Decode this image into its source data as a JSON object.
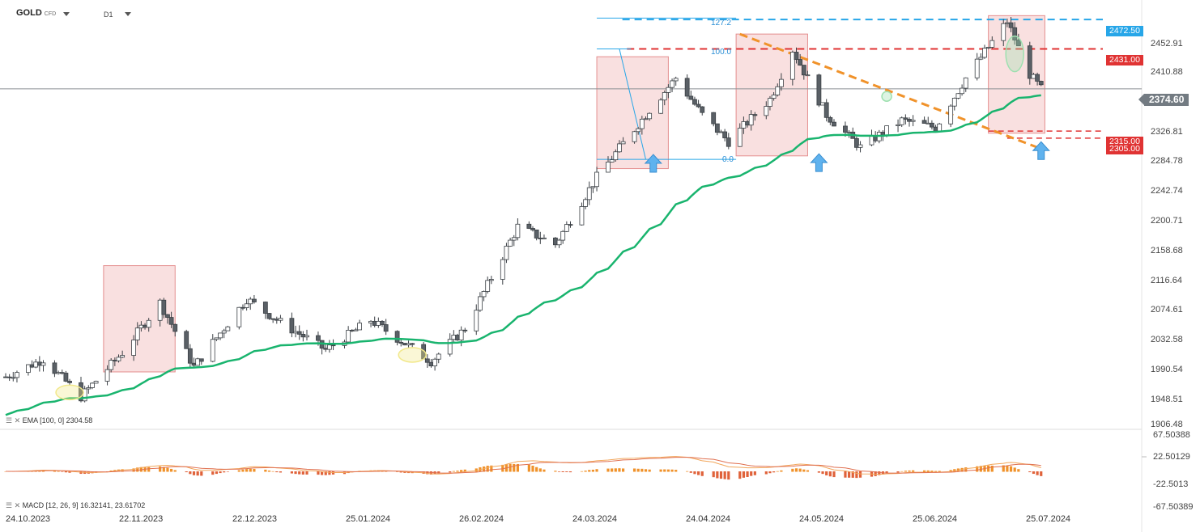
{
  "header": {
    "symbol": "GOLD",
    "symbol_suffix": "CFD",
    "timeframe": "D1"
  },
  "price_axis": {
    "ticks": [
      "2452.91",
      "2410.88",
      "2326.81",
      "2284.78",
      "2242.74",
      "2200.71",
      "2158.68",
      "2116.64",
      "2074.61",
      "2032.58",
      "1990.54",
      "1948.51",
      "1906.48"
    ],
    "last_price": "2374.60"
  },
  "levels": {
    "resistance_high": "2472.50",
    "resistance": "2431.00",
    "support_a": "2315.00",
    "support_b": "2305.00"
  },
  "fibonacci": {
    "labels": [
      "127.2",
      "100.0",
      "0.0"
    ]
  },
  "indicators": {
    "ema_label": "EMA [100, 0] 2304.58",
    "macd_label": "MACD [12, 26, 9] 16.32141, 23.61702"
  },
  "macd_axis": {
    "ticks": [
      "67.50388",
      "22.50129",
      "-22.5013",
      "-67.50389"
    ]
  },
  "time_axis": {
    "ticks": [
      "24.10.2023",
      "22.11.2023",
      "22.12.2023",
      "25.01.2024",
      "26.02.2024",
      "24.03.2024",
      "24.04.2024",
      "24.05.2024",
      "25.06.2024",
      "25.07.2024"
    ]
  },
  "colors": {
    "ema": "#19b46e",
    "candle_up": "#ffffff",
    "candle_down": "#5a6066",
    "resistance_line": "#e03333",
    "high_line": "#27a6e8",
    "trendline": "#f0922a",
    "zone_fill": "#f7d5d5",
    "zone_border": "#e48e8e",
    "arrow": "#5fb2ee"
  },
  "chart_data": {
    "type": "candlestick",
    "title": "",
    "symbol": "GOLD",
    "timeframe": "D1",
    "ylim": [
      1906.48,
      2480
    ],
    "y_ticks": [
      2452.91,
      2410.88,
      2326.81,
      2284.78,
      2242.74,
      2200.71,
      2158.68,
      2116.64,
      2074.61,
      2032.58,
      1990.54,
      1948.51,
      1906.48
    ],
    "x_ticks": [
      "24.10.2023",
      "22.11.2023",
      "22.12.2023",
      "25.01.2024",
      "26.02.2024",
      "24.03.2024",
      "24.04.2024",
      "24.05.2024",
      "25.06.2024",
      "25.07.2024"
    ],
    "last_price": 2374.6,
    "horizontal_levels": [
      2472.5,
      2431.0,
      2315.0,
      2305.0
    ],
    "ema100_last": 2304.58,
    "macd_last": [
      16.32141,
      23.61702
    ],
    "macd_ylim": [
      -67.50389,
      67.50388
    ],
    "anchors": [
      {
        "date": "24.10.2023",
        "close": 1968
      },
      {
        "date": "03.11.2023",
        "close": 1993
      },
      {
        "date": "13.11.2023",
        "close": 1940
      },
      {
        "date": "24.11.2023",
        "close": 2002
      },
      {
        "date": "04.12.2023",
        "close": 2073
      },
      {
        "date": "13.12.2023",
        "close": 1982
      },
      {
        "date": "27.12.2023",
        "close": 2078
      },
      {
        "date": "05.01.2024",
        "close": 2045
      },
      {
        "date": "17.01.2024",
        "close": 2006
      },
      {
        "date": "29.01.2024",
        "close": 2048
      },
      {
        "date": "14.02.2024",
        "close": 1990
      },
      {
        "date": "23.02.2024",
        "close": 2036
      },
      {
        "date": "08.03.2024",
        "close": 2180
      },
      {
        "date": "18.03.2024",
        "close": 2155
      },
      {
        "date": "29.03.2024",
        "close": 2250
      },
      {
        "date": "12.04.2024",
        "close": 2345
      },
      {
        "date": "19.04.2024",
        "close": 2390
      },
      {
        "date": "26.04.2024",
        "close": 2338
      },
      {
        "date": "03.05.2024",
        "close": 2300
      },
      {
        "date": "14.05.2024",
        "close": 2360
      },
      {
        "date": "20.05.2024",
        "close": 2430
      },
      {
        "date": "29.05.2024",
        "close": 2338
      },
      {
        "date": "07.06.2024",
        "close": 2292
      },
      {
        "date": "18.06.2024",
        "close": 2330
      },
      {
        "date": "27.06.2024",
        "close": 2320
      },
      {
        "date": "05.07.2024",
        "close": 2390
      },
      {
        "date": "16.07.2024",
        "close": 2470
      },
      {
        "date": "22.07.2024",
        "close": 2395
      },
      {
        "date": "25.07.2024",
        "close": 2374.6
      }
    ]
  }
}
